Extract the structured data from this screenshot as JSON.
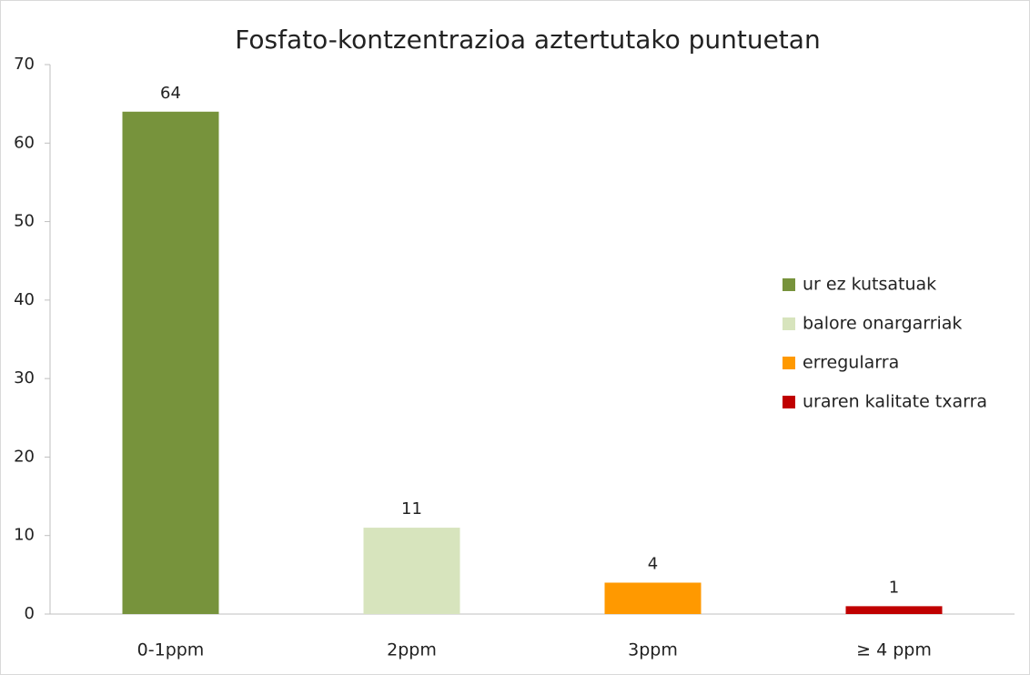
{
  "chart_data": {
    "type": "bar",
    "title": "Fosfato-kontzentrazioa aztertutako puntuetan",
    "categories": [
      "0-1ppm",
      "2ppm",
      "3ppm",
      "≥ 4 ppm"
    ],
    "values": [
      64,
      11,
      4,
      1
    ],
    "colors": [
      "#77933c",
      "#d7e4bd",
      "#ff9900",
      "#c00000"
    ],
    "legend": [
      "ur ez kutsatuak",
      "balore onargarriak",
      "erregularra",
      "uraren kalitate txarra"
    ],
    "ylim": [
      0,
      70
    ],
    "yticks": [
      0,
      10,
      20,
      30,
      40,
      50,
      60,
      70
    ],
    "grid": false,
    "legend_position": "right"
  }
}
